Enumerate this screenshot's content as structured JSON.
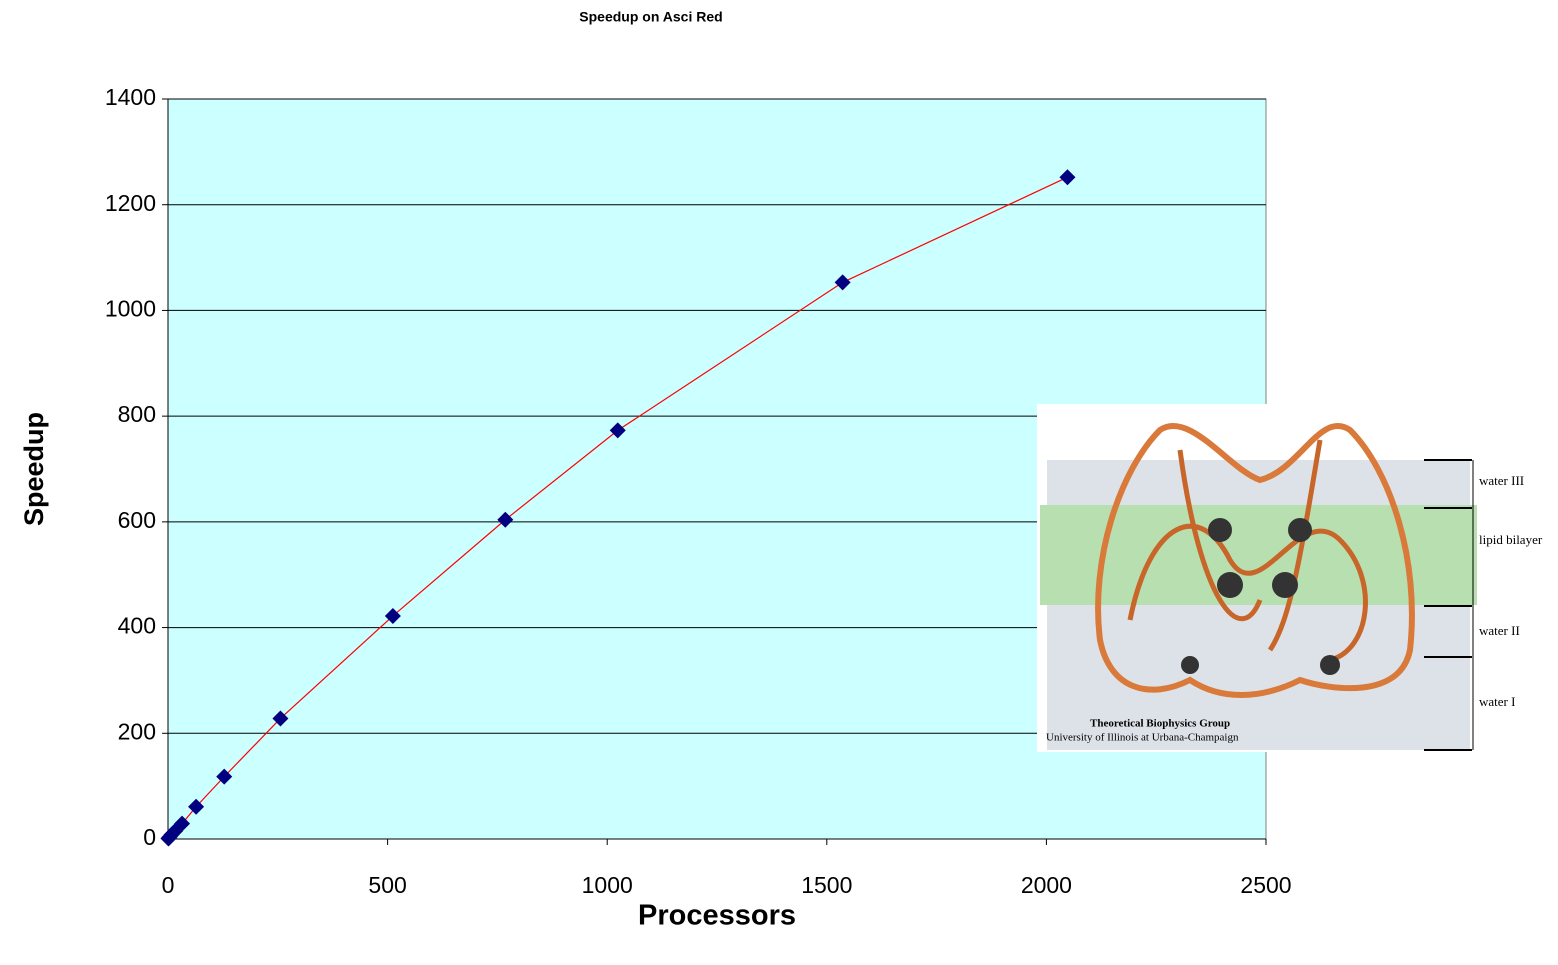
{
  "chart_data": {
    "type": "scatter",
    "title": "Speedup on Asci Red",
    "x_label": "Processors",
    "y_label": "Speedup",
    "series": [
      {
        "name": "Speedup",
        "color": "#000080",
        "line_color": "#ff0000",
        "x": [
          1,
          2,
          4,
          8,
          16,
          32,
          64,
          128,
          256,
          512,
          768,
          1024,
          1536,
          2048
        ],
        "values": [
          1,
          2,
          4,
          8,
          15,
          29,
          61,
          118,
          228,
          422,
          604,
          773,
          1053,
          1252
        ]
      }
    ],
    "xlim": [
      0,
      2500
    ],
    "xticks": [
      0,
      500,
      1000,
      1500,
      2000,
      2500
    ],
    "ylim": [
      0,
      1400
    ],
    "yticks": [
      0,
      200,
      400,
      600,
      800,
      1000,
      1200,
      1400
    ],
    "grid": true,
    "plot_background": "#ccffff",
    "inset": {
      "layer_labels": [
        "water III",
        "lipid bilayer",
        "water II",
        "water I"
      ],
      "caption": [
        "Theoretical Biophysics Group",
        "University of Illinois at Urbana-Champaign"
      ]
    }
  }
}
